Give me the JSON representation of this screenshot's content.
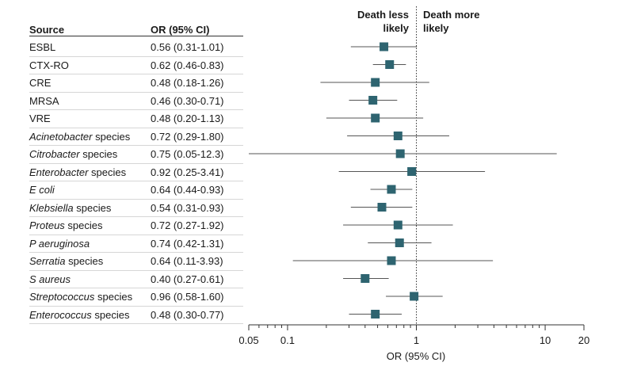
{
  "chart_data": {
    "type": "forest",
    "headers": {
      "source": "Source",
      "or": "OR (95% CI)"
    },
    "annotations": {
      "left": [
        "Death less",
        "likely"
      ],
      "right": [
        "Death more",
        "likely"
      ]
    },
    "xlabel": "OR (95% CI)",
    "xscale": "log",
    "xlim": [
      0.05,
      20
    ],
    "xticks": [
      {
        "value": 0.05,
        "label": "0.05"
      },
      {
        "value": 0.1,
        "label": "0.1"
      },
      {
        "value": 1,
        "label": "1"
      },
      {
        "value": 10,
        "label": "10"
      },
      {
        "value": 20,
        "label": "20"
      }
    ],
    "reference_line": 1,
    "rows": [
      {
        "name": "ESBL",
        "italic": "",
        "suffix": "",
        "or": 0.56,
        "lo": 0.31,
        "hi": 1.01,
        "label": "0.56 (0.31-1.01)"
      },
      {
        "name": "CTX-RO",
        "italic": "",
        "suffix": "",
        "or": 0.62,
        "lo": 0.46,
        "hi": 0.83,
        "label": "0.62 (0.46-0.83)"
      },
      {
        "name": "CRE",
        "italic": "",
        "suffix": "",
        "or": 0.48,
        "lo": 0.18,
        "hi": 1.26,
        "label": "0.48 (0.18-1.26)"
      },
      {
        "name": "MRSA",
        "italic": "",
        "suffix": "",
        "or": 0.46,
        "lo": 0.3,
        "hi": 0.71,
        "label": "0.46 (0.30-0.71)"
      },
      {
        "name": "VRE",
        "italic": "",
        "suffix": "",
        "or": 0.48,
        "lo": 0.2,
        "hi": 1.13,
        "label": "0.48 (0.20-1.13)"
      },
      {
        "name": "",
        "italic": "Acinetobacter",
        "suffix": " species",
        "or": 0.72,
        "lo": 0.29,
        "hi": 1.8,
        "label": "0.72 (0.29-1.80)"
      },
      {
        "name": "",
        "italic": "Citrobacter",
        "suffix": " species",
        "or": 0.75,
        "lo": 0.05,
        "hi": 12.3,
        "label": "0.75 (0.05-12.3)"
      },
      {
        "name": "",
        "italic": "Enterobacter",
        "suffix": " species",
        "or": 0.92,
        "lo": 0.25,
        "hi": 3.41,
        "label": "0.92 (0.25-3.41)"
      },
      {
        "name": "",
        "italic": "E coli",
        "suffix": "",
        "or": 0.64,
        "lo": 0.44,
        "hi": 0.93,
        "label": "0.64 (0.44-0.93)"
      },
      {
        "name": "",
        "italic": "Klebsiella",
        "suffix": " species",
        "or": 0.54,
        "lo": 0.31,
        "hi": 0.93,
        "label": "0.54 (0.31-0.93)"
      },
      {
        "name": "",
        "italic": "Proteus",
        "suffix": " species",
        "or": 0.72,
        "lo": 0.27,
        "hi": 1.92,
        "label": "0.72 (0.27-1.92)"
      },
      {
        "name": "",
        "italic": "P aeruginosa",
        "suffix": "",
        "or": 0.74,
        "lo": 0.42,
        "hi": 1.31,
        "label": "0.74 (0.42-1.31)"
      },
      {
        "name": "",
        "italic": "Serratia",
        "suffix": " species",
        "or": 0.64,
        "lo": 0.11,
        "hi": 3.93,
        "label": "0.64 (0.11-3.93)"
      },
      {
        "name": "",
        "italic": "S aureus",
        "suffix": "",
        "or": 0.4,
        "lo": 0.27,
        "hi": 0.61,
        "label": "0.40 (0.27-0.61)"
      },
      {
        "name": "",
        "italic": "Streptococcus",
        "suffix": " species",
        "or": 0.96,
        "lo": 0.58,
        "hi": 1.6,
        "label": "0.96 (0.58-1.60)"
      },
      {
        "name": "",
        "italic": "Enterococcus",
        "suffix": " species",
        "or": 0.48,
        "lo": 0.3,
        "hi": 0.77,
        "label": "0.48 (0.30-0.77)"
      }
    ],
    "colors": {
      "marker": "#2e6470",
      "ci_line": "#555555",
      "axis": "#333333",
      "reference": "#333333"
    }
  }
}
